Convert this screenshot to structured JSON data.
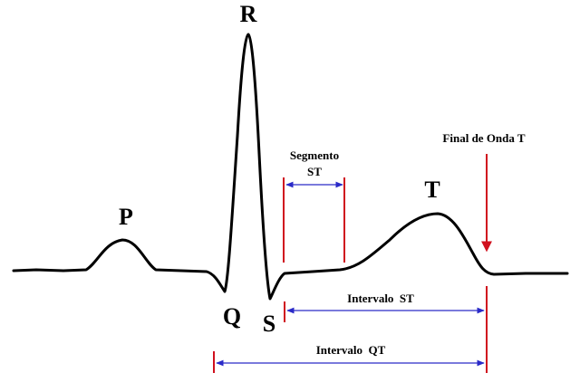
{
  "waves": {
    "p": "P",
    "q": "Q",
    "r": "R",
    "s": "S",
    "t": "T"
  },
  "annotations": {
    "segment_st_line1": "Segmento",
    "segment_st_line2": "ST",
    "end_of_t_wave": "Final de Onda T",
    "interval_st": "Intervalo  ST",
    "interval_qt": "Intervalo  QT"
  },
  "colors": {
    "trace": "#000000",
    "markers": "#d0101e",
    "intervals": "#2a2ac8",
    "background": "#ffffff"
  }
}
